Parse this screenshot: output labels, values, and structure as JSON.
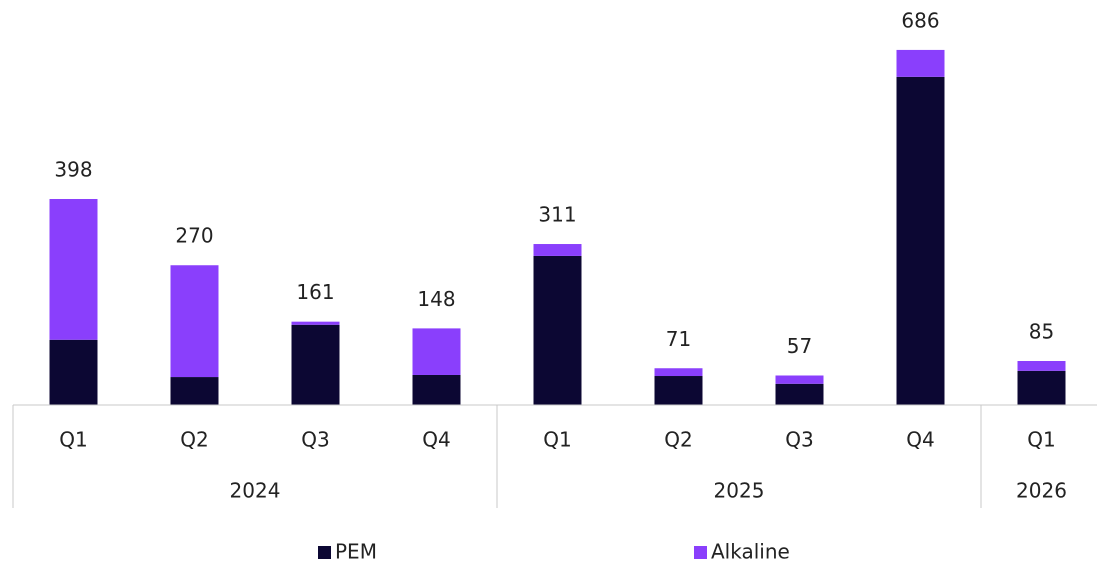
{
  "chart_data": {
    "type": "stacked_bar",
    "categories": [
      "Q1",
      "Q2",
      "Q3",
      "Q4",
      "Q1",
      "Q2",
      "Q3",
      "Q4",
      "Q1"
    ],
    "x_groups": [
      {
        "label": "2024",
        "count": 4
      },
      {
        "label": "2025",
        "count": 4
      },
      {
        "label": "2026",
        "count": 1
      }
    ],
    "series": [
      {
        "name": "PEM",
        "color": "#0c0733",
        "values": [
          126,
          54,
          155,
          58,
          288,
          56,
          41,
          634,
          66
        ]
      },
      {
        "name": "Alkaline",
        "color": "#8a3ffc",
        "values": [
          272,
          216,
          6,
          90,
          23,
          15,
          16,
          52,
          19
        ]
      }
    ],
    "totals": [
      398,
      270,
      161,
      148,
      311,
      71,
      57,
      686,
      85
    ]
  }
}
